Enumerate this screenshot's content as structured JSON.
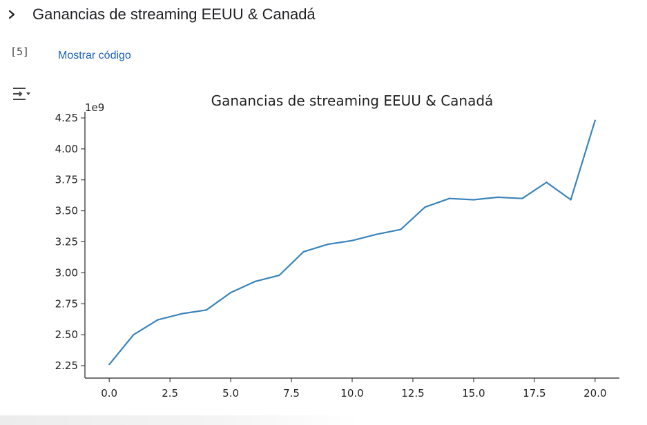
{
  "section": {
    "title": "Ganancias de streaming EEUU & Canadá",
    "toggle_icon": "chevron-right-icon"
  },
  "cell": {
    "execution_count": "[5]",
    "show_code_label": "Mostrar código",
    "output_icon": "output-collapse-icon"
  },
  "colors": {
    "line": "#3a84ba",
    "link": "#1a5fb4"
  },
  "chart_data": {
    "type": "line",
    "title": "Ganancias de streaming EEUU & Canadá",
    "xlabel": "",
    "ylabel": "",
    "offset_label": "1e9",
    "x": [
      0,
      1,
      2,
      3,
      4,
      5,
      6,
      7,
      8,
      9,
      10,
      11,
      12,
      13,
      14,
      15,
      16,
      17,
      18,
      19,
      20
    ],
    "values": [
      2.26,
      2.5,
      2.62,
      2.67,
      2.7,
      2.84,
      2.93,
      2.98,
      3.17,
      3.23,
      3.26,
      3.31,
      3.35,
      3.53,
      3.6,
      3.59,
      3.61,
      3.6,
      3.73,
      3.59,
      4.23
    ],
    "xlim": [
      -1,
      21
    ],
    "ylim": [
      2.15,
      4.3
    ],
    "xticks": [
      0,
      2.5,
      5,
      7.5,
      10,
      12.5,
      15,
      17.5,
      20
    ],
    "xtick_labels": [
      "0.0",
      "2.5",
      "5.0",
      "7.5",
      "10.0",
      "12.5",
      "15.0",
      "17.5",
      "20.0"
    ],
    "yticks": [
      2.25,
      2.5,
      2.75,
      3.0,
      3.25,
      3.5,
      3.75,
      4.0,
      4.25
    ],
    "ytick_labels": [
      "2.25",
      "2.50",
      "2.75",
      "3.00",
      "3.25",
      "3.50",
      "3.75",
      "4.00",
      "4.25"
    ],
    "grid": false,
    "spines": "left-bottom"
  }
}
